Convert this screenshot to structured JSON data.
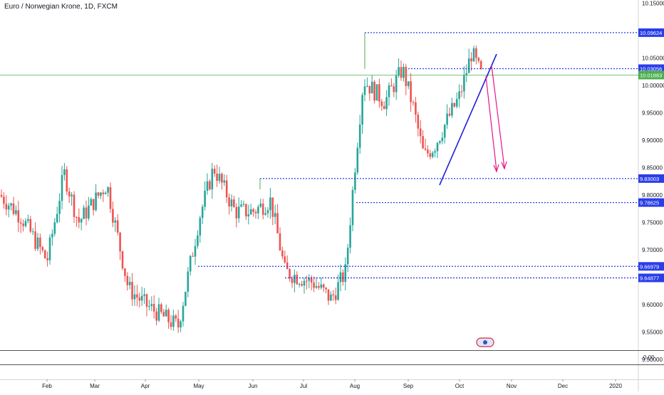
{
  "header": {
    "title": "Euro / Norwegian Krone, 1D, FXCM"
  },
  "chart_data": {
    "type": "candlestick",
    "title": "Euro / Norwegian Krone, 1D, FXCM",
    "ylim": [
      9.5,
      10.15
    ],
    "y_ticks": [
      "10.15000",
      "10.05000",
      "10.00000",
      "9.95000",
      "9.90000",
      "9.85000",
      "9.80000",
      "9.75000",
      "9.70000",
      "9.60000",
      "9.55000",
      "9.50000"
    ],
    "y_tick_values": [
      10.15,
      10.05,
      10.0,
      9.95,
      9.9,
      9.85,
      9.8,
      9.75,
      9.7,
      9.6,
      9.55,
      9.5
    ],
    "x_ticks": [
      "Feb",
      "Mar",
      "Apr",
      "May",
      "Jun",
      "Jul",
      "Aug",
      "Sep",
      "Oct",
      "Nov",
      "Dec",
      "2020"
    ],
    "indicator_tick": "0.00",
    "price_levels": [
      {
        "label": "10.09624",
        "value": 10.09624
      },
      {
        "label": "10.03056",
        "value": 10.03056
      },
      {
        "label": "9.83003",
        "value": 9.83003
      },
      {
        "label": "9.78625",
        "value": 9.78625
      },
      {
        "label": "9.66979",
        "value": 9.66979
      },
      {
        "label": "9.64877",
        "value": 9.64877
      }
    ],
    "last_price": {
      "label": "10.01883",
      "value": 10.01883
    },
    "colors": {
      "up": "#26a69a",
      "down": "#ef5350",
      "level": "#2a3ee8",
      "last": "#4caf50",
      "trend": "#1f1fd6",
      "projection": "#e6148c"
    },
    "series_key_points": [
      [
        "Jan",
        9.8
      ],
      [
        "Feb",
        9.68
      ],
      [
        "Feb-mid",
        9.84
      ],
      [
        "Mar",
        9.75
      ],
      [
        "Mar-mid",
        9.82
      ],
      [
        "Apr",
        9.61
      ],
      [
        "Apr-end",
        9.56
      ],
      [
        "May",
        9.72
      ],
      [
        "May-mid",
        9.85
      ],
      [
        "Jun",
        9.76
      ],
      [
        "Jun-mid",
        9.8
      ],
      [
        "Jul",
        9.65
      ],
      [
        "Jul-end",
        9.61
      ],
      [
        "Aug",
        9.9
      ],
      [
        "Aug-mid",
        10.02
      ],
      [
        "Sep",
        10.04
      ],
      [
        "Sep-mid",
        9.86
      ],
      [
        "Oct",
        10.08
      ],
      [
        "Oct-mid",
        10.02
      ]
    ]
  }
}
